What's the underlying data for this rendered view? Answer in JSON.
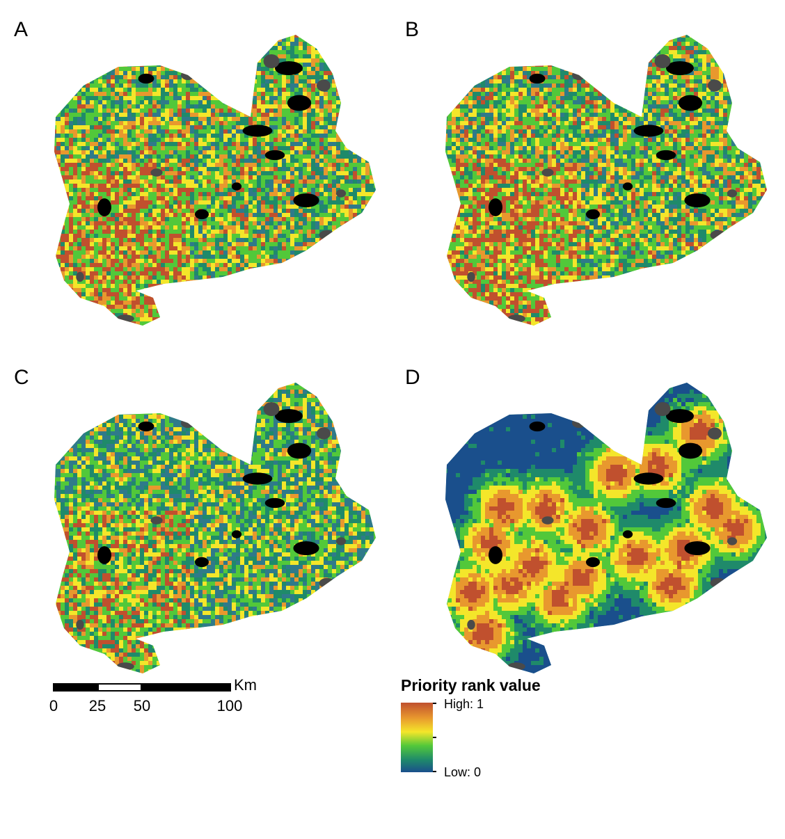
{
  "panels": [
    {
      "label": "A",
      "style": "mixed"
    },
    {
      "label": "B",
      "style": "mixed"
    },
    {
      "label": "C",
      "style": "mixed-cool"
    },
    {
      "label": "D",
      "style": "buffer"
    }
  ],
  "scalebar": {
    "unit": "Km",
    "ticks": [
      "0",
      "25",
      "50",
      "100"
    ]
  },
  "legend": {
    "title": "Priority rank value",
    "high": "High: 1",
    "low": "Low: 0"
  },
  "colors": {
    "high": "#c0502e",
    "orange": "#e8982e",
    "yellow": "#f4e62a",
    "green": "#52c83a",
    "teal": "#1f8a6a",
    "low": "#1a4f8c",
    "protected": "#4a4a4a",
    "excluded": "#000000"
  }
}
